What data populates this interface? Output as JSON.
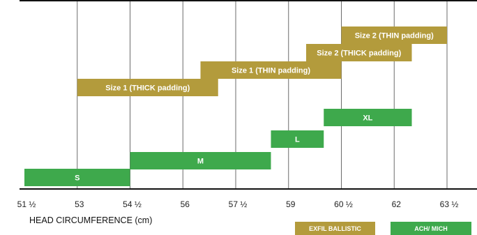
{
  "chart_data": {
    "type": "bar",
    "orientation": "horizontal-range",
    "xlabel": "HEAD CIRCUMFERENCE (cm)",
    "x_ticks": [
      {
        "value": 51.5,
        "label": "51 ½"
      },
      {
        "value": 53,
        "label": "53"
      },
      {
        "value": 54.5,
        "label": "54 ½"
      },
      {
        "value": 56,
        "label": "56"
      },
      {
        "value": 57.5,
        "label": "57 ½"
      },
      {
        "value": 59,
        "label": "59"
      },
      {
        "value": 60.5,
        "label": "60 ½"
      },
      {
        "value": 62,
        "label": "62"
      },
      {
        "value": 63.5,
        "label": "63 ½"
      }
    ],
    "grid": true,
    "legend_position": "bottom-right",
    "series": [
      {
        "name": "EXFIL BALLISTIC",
        "color": "#b39b3c",
        "bars": [
          {
            "label": "Size 1 (THICK padding)",
            "start": 53.0,
            "end": 57.0
          },
          {
            "label": "Size 1 (THIN padding)",
            "start": 56.5,
            "end": 60.5
          },
          {
            "label": "Size 2 (THICK padding)",
            "start": 59.5,
            "end": 62.5
          },
          {
            "label": "Size 2 (THIN padding)",
            "start": 60.5,
            "end": 63.5
          }
        ]
      },
      {
        "name": "ACH/ MICH",
        "color": "#3ea94c",
        "bars": [
          {
            "label": "S",
            "start": 51.5,
            "end": 54.5
          },
          {
            "label": "M",
            "start": 54.5,
            "end": 58.5
          },
          {
            "label": "L",
            "start": 58.5,
            "end": 60.0
          },
          {
            "label": "XL",
            "start": 60.0,
            "end": 62.5
          }
        ]
      }
    ]
  }
}
